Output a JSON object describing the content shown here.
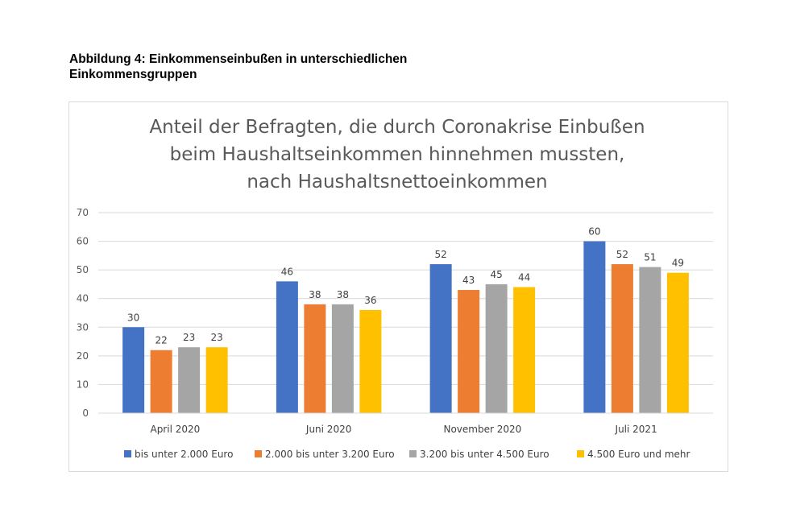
{
  "caption": {
    "line1": "Abbildung 4: Einkommenseinbußen in unterschiedlichen",
    "line2": "Einkommensgruppen"
  },
  "chart_data": {
    "type": "bar",
    "title_lines": [
      "Anteil der Befragten, die durch Coronakrise Einbußen",
      "beim Haushaltseinkommen hinnehmen mussten,",
      "nach Haushaltsnettoeinkommen"
    ],
    "categories": [
      "April 2020",
      "Juni 2020",
      "November 2020",
      "Juli 2021"
    ],
    "series": [
      {
        "name": "bis unter 2.000 Euro",
        "color": "#4472c4",
        "values": [
          30,
          46,
          52,
          60
        ]
      },
      {
        "name": "2.000 bis unter 3.200 Euro",
        "color": "#ed7d31",
        "values": [
          22,
          38,
          43,
          52
        ]
      },
      {
        "name": "3.200 bis unter 4.500 Euro",
        "color": "#a5a5a5",
        "values": [
          23,
          38,
          45,
          51
        ]
      },
      {
        "name": "4.500 Euro und mehr",
        "color": "#ffc000",
        "values": [
          23,
          36,
          44,
          49
        ]
      }
    ],
    "ylim": [
      0,
      70
    ],
    "yticks": [
      0,
      10,
      20,
      30,
      40,
      50,
      60,
      70
    ],
    "grid": true,
    "legend_position": "bottom"
  }
}
